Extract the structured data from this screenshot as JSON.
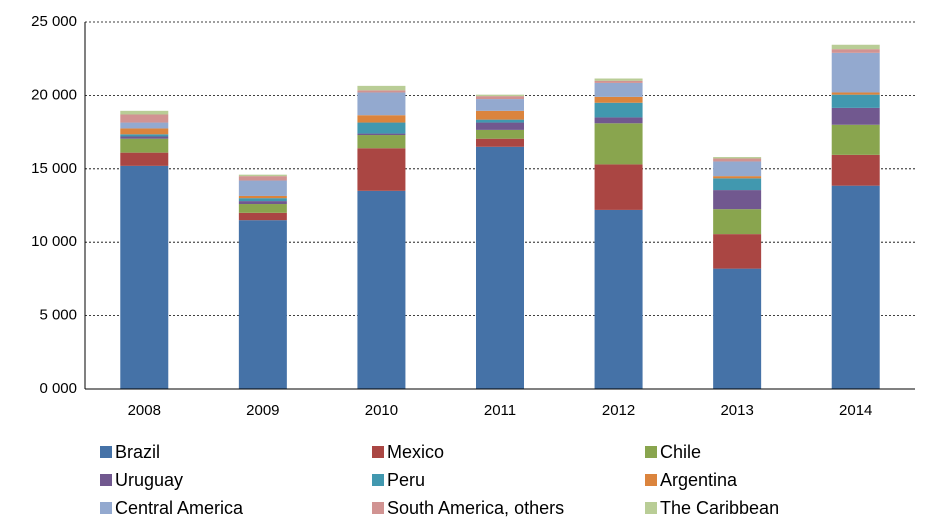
{
  "chart_data": {
    "type": "stacked_bar",
    "categories": [
      "2008",
      "2009",
      "2010",
      "2011",
      "2012",
      "2013",
      "2014"
    ],
    "series": [
      {
        "name": "Brazil",
        "color": "#4572a7",
        "values": [
          15200,
          11500,
          13500,
          16500,
          12200,
          8200,
          13850
        ]
      },
      {
        "name": "Mexico",
        "color": "#aa4643",
        "values": [
          900,
          500,
          2900,
          550,
          3100,
          2350,
          2100
        ]
      },
      {
        "name": "Chile",
        "color": "#89a54e",
        "values": [
          950,
          600,
          900,
          600,
          2800,
          1700,
          2050
        ]
      },
      {
        "name": "Uruguay",
        "color": "#71588f",
        "values": [
          150,
          200,
          100,
          500,
          400,
          1300,
          1150
        ]
      },
      {
        "name": "Peru",
        "color": "#4198af",
        "values": [
          150,
          200,
          750,
          200,
          1000,
          800,
          900
        ]
      },
      {
        "name": "Argentina",
        "color": "#db843d",
        "values": [
          400,
          150,
          500,
          600,
          400,
          150,
          150
        ]
      },
      {
        "name": "Central America",
        "color": "#93a9cf",
        "values": [
          400,
          1050,
          1550,
          800,
          950,
          1000,
          2700
        ]
      },
      {
        "name": "South America, others",
        "color": "#d19392",
        "values": [
          550,
          300,
          150,
          200,
          150,
          200,
          250
        ]
      },
      {
        "name": "The Caribbean",
        "color": "#b9cd96",
        "values": [
          250,
          100,
          300,
          100,
          150,
          100,
          300
        ]
      }
    ],
    "ylim": [
      0,
      25000
    ],
    "yticks": [
      {
        "value": 0,
        "label": "0 000"
      },
      {
        "value": 5000,
        "label": "5 000"
      },
      {
        "value": 10000,
        "label": "10 000"
      },
      {
        "value": 15000,
        "label": "15 000"
      },
      {
        "value": 20000,
        "label": "20 000"
      },
      {
        "value": 25000,
        "label": "25 000"
      }
    ],
    "grid": true,
    "legend": "bottom"
  }
}
